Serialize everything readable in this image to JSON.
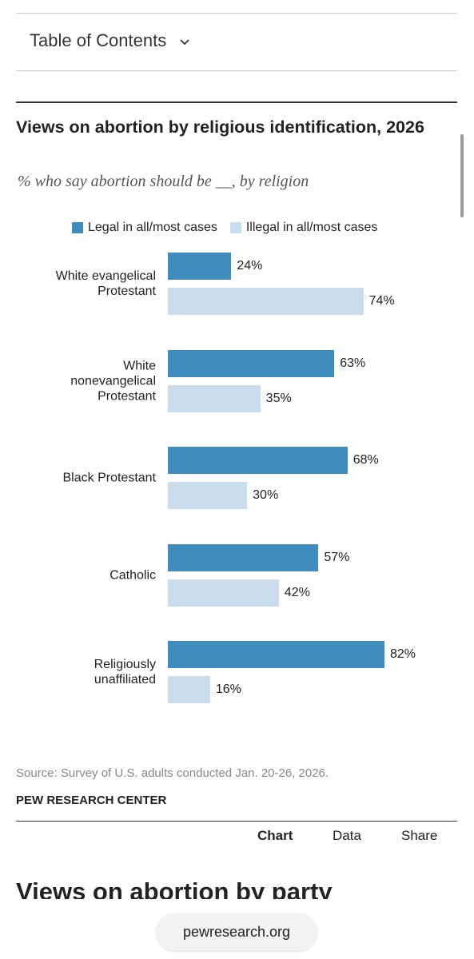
{
  "toc": "Table of Contents",
  "chart_data": {
    "type": "bar",
    "orientation": "horizontal",
    "title": "Views on abortion by religious identification, 2026",
    "subtitle": "% who say abortion should be __, by religion",
    "categories": [
      "White evangelical\nProtestant",
      "White\nnonevangelical\nProtestant",
      "Black Protestant",
      "Catholic",
      "Religiously\nunaffiliated"
    ],
    "series": [
      {
        "name": "Legal in all/most cases",
        "color": "#3f8dbf",
        "values": [
          24,
          63,
          68,
          57,
          82
        ],
        "value_labels": [
          "24%",
          "63%",
          "68%",
          "57%",
          "82%"
        ]
      },
      {
        "name": "Illegal in all/most cases",
        "color": "#c9ddec",
        "values": [
          74,
          35,
          30,
          42,
          16
        ],
        "value_labels": [
          "74%",
          "35%",
          "30%",
          "42%",
          "16%"
        ]
      }
    ]
  },
  "source": "Source: Survey of U.S. adults conducted Jan. 20-26, 2026.",
  "brand": "PEW RESEARCH CENTER",
  "tabs": [
    "Chart",
    "Data",
    "Share"
  ],
  "next_heading": "Views on abortion by party",
  "url": "pewresearch.org"
}
